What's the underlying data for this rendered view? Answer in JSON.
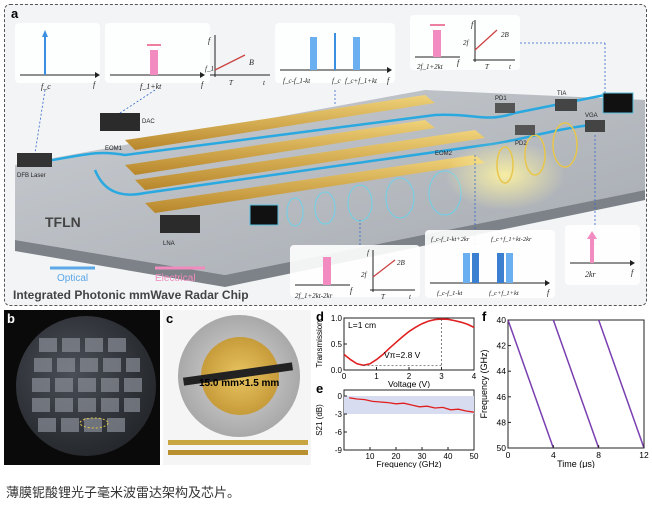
{
  "panel_a": {
    "label": "a",
    "title": "Integrated Photonic mmWave Radar Chip",
    "legend_optical": "Optical",
    "legend_electrical": "Electrical",
    "substrate": "TFLN",
    "components": {
      "dfb": "DFB Laser",
      "dac": "DAC",
      "eom1": "EOM1",
      "eom2": "EOM2",
      "pd1": "PD1",
      "pd2": "PD2",
      "tia": "TIA",
      "vga": "VGA",
      "lna": "LNA"
    },
    "spectra": {
      "s1_x": "f_c",
      "s1_f": "f",
      "s2_x": "f_1+kt",
      "s2_f": "f",
      "s3_a": "f_c-f_1-kt",
      "s3_b": "f_c",
      "s3_c": "f_c+f_1+kt",
      "s3_f": "f",
      "s4_x": "2f_1+2kt",
      "s4_f": "f",
      "s5_x": "2f_1+2kt-2kr",
      "s5_f": "f",
      "s6_a": "f_c-f_1-kt+2kr",
      "s6_b": "f_c+f_1+kt-2kr",
      "s6_c": "f_c-f_1-kt",
      "s6_d": "f_c+f_1+kt",
      "s6_f": "f",
      "s7_x": "2kr",
      "s7_f": "f"
    },
    "chirp_insets": {
      "i1_f": "f",
      "i1_fl": "f_1",
      "i1_B": "B",
      "i1_T": "T",
      "i1_t": "t",
      "i2_f": "f",
      "i2_fl": "2f",
      "i2_B": "2B",
      "i2_T": "T",
      "i2_t": "t",
      "i3_f": "f",
      "i3_fl": "2f",
      "i3_B": "2B",
      "i3_T": "T",
      "i3_t": "t"
    }
  },
  "panel_b": {
    "label": "b"
  },
  "panel_c": {
    "label": "c",
    "dimension": "15.0 mm×1.5 mm"
  },
  "panel_d": {
    "label": "d",
    "annotation_L": "L=1 cm",
    "annotation_V": "Vπ=2.8 V",
    "xlabel": "Voltage (V)",
    "ylabel": "Transmission",
    "xticks": [
      "0",
      "1",
      "2",
      "3",
      "4"
    ],
    "yticks": [
      "1.0",
      "0.5",
      "0.0"
    ]
  },
  "panel_e": {
    "label": "e",
    "xlabel": "Frequency (GHz)",
    "ylabel": "S21 (dB)",
    "xticks": [
      "10",
      "20",
      "30",
      "40",
      "50"
    ],
    "yticks": [
      "0",
      "-3",
      "-6",
      "-9"
    ]
  },
  "panel_f": {
    "label": "f",
    "xlabel": "Time (μs)",
    "ylabel": "Frequency (GHz)",
    "xticks": [
      "0",
      "4",
      "8",
      "12"
    ],
    "yticks": [
      "40",
      "42",
      "44",
      "46",
      "48",
      "50"
    ]
  },
  "caption": "薄膜铌酸锂光子毫米波雷达架构及芯片。",
  "chart_data": [
    {
      "type": "line",
      "title": "",
      "xlabel": "Voltage (V)",
      "ylabel": "Transmission",
      "xlim": [
        0,
        4
      ],
      "ylim": [
        0,
        1.0
      ],
      "x": [
        0,
        0.2,
        0.4,
        0.6,
        0.8,
        1.0,
        1.2,
        1.4,
        1.6,
        1.8,
        2.0,
        2.2,
        2.4,
        2.6,
        2.8,
        3.0,
        3.2,
        3.4,
        3.6,
        3.8,
        4.0
      ],
      "series": [
        {
          "values": [
            0.3,
            0.2,
            0.12,
            0.09,
            0.12,
            0.2,
            0.3,
            0.42,
            0.53,
            0.64,
            0.74,
            0.82,
            0.89,
            0.94,
            0.97,
            0.98,
            0.975,
            0.95,
            0.92,
            0.88,
            0.82
          ]
        }
      ]
    },
    {
      "type": "line",
      "title": "",
      "xlabel": "Frequency (GHz)",
      "ylabel": "S21 (dB)",
      "xlim": [
        0,
        50
      ],
      "ylim": [
        -9,
        1
      ],
      "x": [
        2,
        5,
        8,
        11,
        14,
        17,
        20,
        23,
        26,
        29,
        32,
        35,
        38,
        41,
        44,
        47,
        50
      ],
      "series": [
        {
          "values": [
            -0.3,
            -0.5,
            -0.6,
            -0.9,
            -1.0,
            -1.1,
            -1.3,
            -1.2,
            -1.5,
            -1.8,
            -1.7,
            -2.0,
            -1.9,
            -2.3,
            -2.2,
            -2.5,
            -2.7
          ]
        }
      ]
    },
    {
      "type": "line",
      "title": "",
      "xlabel": "Time (μs)",
      "ylabel": "Frequency (GHz)",
      "xlim": [
        0,
        12
      ],
      "ylim": [
        50,
        40
      ],
      "x": [
        0,
        4,
        4,
        8,
        8,
        12
      ],
      "series": [
        {
          "values": [
            40,
            50,
            40,
            50,
            40,
            50
          ]
        }
      ]
    }
  ]
}
